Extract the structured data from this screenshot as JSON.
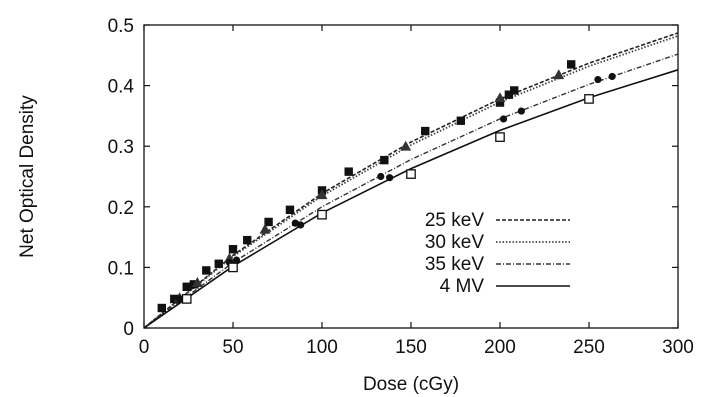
{
  "chart_data": {
    "type": "scatter",
    "title": "",
    "xlabel": "Dose (cGy)",
    "ylabel": "Net Optical Density",
    "xlim": [
      0,
      300
    ],
    "ylim": [
      0,
      0.5
    ],
    "xticks": [
      "0",
      "50",
      "100",
      "150",
      "200",
      "250",
      "300"
    ],
    "yticks": [
      "0",
      "0.1",
      "0.2",
      "0.3",
      "0.4",
      "0.5"
    ],
    "grid": false,
    "legend_position": "center-right",
    "series": [
      {
        "name": "25 keV",
        "marker": "filled-square",
        "line_style": "dashed",
        "points": [
          [
            10,
            0.033
          ],
          [
            17,
            0.048
          ],
          [
            24,
            0.068
          ],
          [
            28,
            0.072
          ],
          [
            35,
            0.095
          ],
          [
            42,
            0.106
          ],
          [
            50,
            0.13
          ],
          [
            58,
            0.145
          ],
          [
            70,
            0.175
          ],
          [
            82,
            0.195
          ],
          [
            100,
            0.227
          ],
          [
            115,
            0.258
          ],
          [
            135,
            0.277
          ],
          [
            158,
            0.325
          ],
          [
            178,
            0.342
          ],
          [
            200,
            0.372
          ],
          [
            205,
            0.385
          ],
          [
            208,
            0.392
          ],
          [
            240,
            0.435
          ]
        ],
        "fit": [
          [
            0,
            0
          ],
          [
            50,
            0.12
          ],
          [
            100,
            0.222
          ],
          [
            150,
            0.307
          ],
          [
            200,
            0.378
          ],
          [
            250,
            0.437
          ],
          [
            300,
            0.487
          ]
        ]
      },
      {
        "name": "30 keV",
        "marker": "filled-triangle",
        "line_style": "dotted",
        "points": [
          [
            20,
            0.05
          ],
          [
            30,
            0.075
          ],
          [
            48,
            0.115
          ],
          [
            68,
            0.163
          ],
          [
            100,
            0.22
          ],
          [
            147,
            0.3
          ],
          [
            200,
            0.38
          ],
          [
            233,
            0.418
          ]
        ],
        "fit": [
          [
            0,
            0
          ],
          [
            50,
            0.118
          ],
          [
            100,
            0.218
          ],
          [
            150,
            0.302
          ],
          [
            200,
            0.373
          ],
          [
            250,
            0.432
          ],
          [
            300,
            0.482
          ]
        ]
      },
      {
        "name": "35 keV",
        "marker": "filled-circle",
        "line_style": "dash-dot",
        "points": [
          [
            20,
            0.048
          ],
          [
            48,
            0.108
          ],
          [
            52,
            0.112
          ],
          [
            85,
            0.173
          ],
          [
            88,
            0.17
          ],
          [
            133,
            0.25
          ],
          [
            138,
            0.248
          ],
          [
            202,
            0.345
          ],
          [
            212,
            0.358
          ],
          [
            255,
            0.41
          ],
          [
            263,
            0.415
          ]
        ],
        "fit": [
          [
            0,
            0
          ],
          [
            50,
            0.108
          ],
          [
            100,
            0.2
          ],
          [
            150,
            0.278
          ],
          [
            200,
            0.345
          ],
          [
            250,
            0.402
          ],
          [
            300,
            0.452
          ]
        ]
      },
      {
        "name": "4 MV",
        "marker": "open-square",
        "line_style": "solid",
        "points": [
          [
            24,
            0.048
          ],
          [
            50,
            0.1
          ],
          [
            100,
            0.187
          ],
          [
            150,
            0.254
          ],
          [
            200,
            0.315
          ],
          [
            250,
            0.378
          ]
        ],
        "fit": [
          [
            0,
            0
          ],
          [
            50,
            0.102
          ],
          [
            100,
            0.19
          ],
          [
            150,
            0.263
          ],
          [
            200,
            0.326
          ],
          [
            250,
            0.38
          ],
          [
            300,
            0.426
          ]
        ]
      }
    ]
  }
}
